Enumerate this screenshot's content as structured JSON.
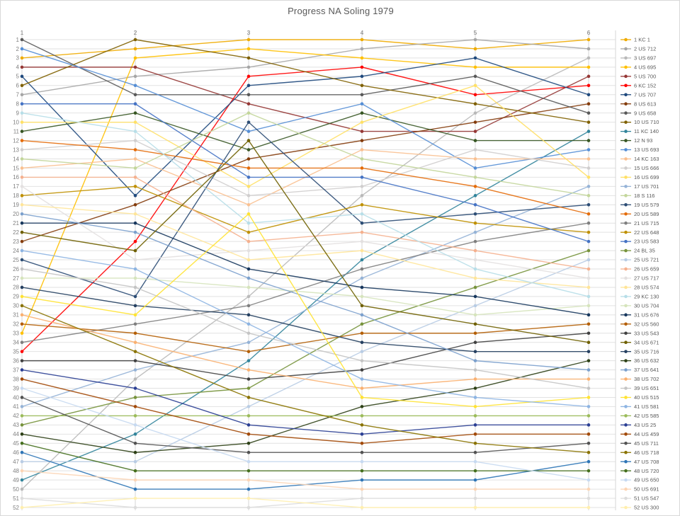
{
  "chart_data": {
    "type": "line",
    "subtype": "bump-chart",
    "title": "Progress NA Soling 1979",
    "xlabel": "",
    "ylabel": "",
    "x_axis": {
      "position": "top",
      "ticks": [
        "1",
        "2",
        "3",
        "4",
        "5",
        "6"
      ]
    },
    "y_axis": {
      "min": 1,
      "max": 52,
      "tick_step": 1,
      "inverted": true
    },
    "grid": true,
    "legend_position": "right",
    "style": {
      "grid_color_h": "#e2e2e2",
      "grid_color_v": "#d6d6d6",
      "axis_label_color": "#808080",
      "legend_text_color": "#595959",
      "title_color": "#595959",
      "background": "#ffffff"
    },
    "races": [
      1,
      2,
      3,
      4,
      5,
      6
    ],
    "series": [
      {
        "label": "1 KC 1",
        "color": "#EFAB00",
        "positions": [
          3,
          2,
          1,
          1,
          2,
          1
        ]
      },
      {
        "label": "2 US 712",
        "color": "#A6A6A6",
        "positions": [
          7,
          5,
          4,
          2,
          1,
          2
        ]
      },
      {
        "label": "3 US 697",
        "color": "#B9B9B9",
        "positions": [
          50,
          38,
          29,
          18,
          9,
          3
        ]
      },
      {
        "label": "4 US 695",
        "color": "#FFC000",
        "positions": [
          33,
          3,
          2,
          3,
          4,
          4
        ]
      },
      {
        "label": "5 US 700",
        "color": "#953735",
        "positions": [
          4,
          4,
          8,
          11,
          11,
          5
        ]
      },
      {
        "label": "6 KC 152",
        "color": "#FF0000",
        "positions": [
          35,
          23,
          5,
          4,
          7,
          6
        ]
      },
      {
        "label": "7 US 707",
        "color": "#1F497D",
        "positions": [
          5,
          18,
          6,
          5,
          3,
          7
        ]
      },
      {
        "label": "8 US 613",
        "color": "#843C0C",
        "positions": [
          23,
          19,
          14,
          12,
          10,
          8
        ]
      },
      {
        "label": "9 US 658",
        "color": "#595959",
        "positions": [
          1,
          7,
          7,
          7,
          5,
          9
        ]
      },
      {
        "label": "10 US 710",
        "color": "#7F6000",
        "positions": [
          6,
          1,
          3,
          6,
          8,
          10
        ]
      },
      {
        "label": "11 KC 140",
        "color": "#31849B",
        "positions": [
          49,
          44,
          36,
          25,
          18,
          11
        ]
      },
      {
        "label": "12 N 93",
        "color": "#375623",
        "positions": [
          11,
          9,
          13,
          9,
          12,
          12
        ]
      },
      {
        "label": "13 US 693",
        "color": "#558ED5",
        "positions": [
          2,
          6,
          11,
          8,
          15,
          13
        ]
      },
      {
        "label": "14 KC 163",
        "color": "#FAC090",
        "positions": [
          15,
          14,
          19,
          13,
          14,
          14
        ]
      },
      {
        "label": "15 US 666",
        "color": "#D0CECE",
        "positions": [
          13,
          12,
          18,
          17,
          13,
          15
        ]
      },
      {
        "label": "16 US 699",
        "color": "#FFE066",
        "positions": [
          10,
          10,
          17,
          10,
          6,
          16
        ]
      },
      {
        "label": "17 US 701",
        "color": "#95B3D7",
        "positions": [
          41,
          37,
          34,
          27,
          22,
          17
        ]
      },
      {
        "label": "18 S 116",
        "color": "#C3D69B",
        "positions": [
          14,
          15,
          9,
          14,
          16,
          18
        ]
      },
      {
        "label": "19 US 579",
        "color": "#2C4D75",
        "positions": [
          25,
          29,
          10,
          21,
          20,
          19
        ]
      },
      {
        "label": "20 US 589",
        "color": "#E46C0A",
        "positions": [
          12,
          13,
          15,
          15,
          17,
          20
        ]
      },
      {
        "label": "21 US 715",
        "color": "#7F7F7F",
        "positions": [
          34,
          32,
          30,
          26,
          23,
          21
        ]
      },
      {
        "label": "22 US 648",
        "color": "#BF9000",
        "positions": [
          18,
          17,
          22,
          19,
          21,
          22
        ]
      },
      {
        "label": "23 US 583",
        "color": "#4472C4",
        "positions": [
          8,
          8,
          16,
          16,
          19,
          23
        ]
      },
      {
        "label": "24 BL 35",
        "color": "#77933C",
        "positions": [
          43,
          40,
          39,
          32,
          28,
          24
        ]
      },
      {
        "label": "25 US 721",
        "color": "#B8CCE4",
        "positions": [
          47,
          47,
          41,
          35,
          30,
          25
        ]
      },
      {
        "label": "26 US 659",
        "color": "#F5B08E",
        "positions": [
          16,
          16,
          23,
          22,
          24,
          26
        ]
      },
      {
        "label": "27 US 717",
        "color": "#E3E0E0",
        "positions": [
          17,
          25,
          24,
          23,
          25,
          27
        ]
      },
      {
        "label": "28 US 574",
        "color": "#FFE599",
        "positions": [
          19,
          20,
          25,
          24,
          27,
          28
        ]
      },
      {
        "label": "29 KC 130",
        "color": "#B7DEE8",
        "positions": [
          9,
          11,
          21,
          20,
          26,
          29
        ]
      },
      {
        "label": "30 US 704",
        "color": "#D6E4BC",
        "positions": [
          27,
          27,
          28,
          29,
          31,
          30
        ]
      },
      {
        "label": "31 US 676",
        "color": "#17375D",
        "positions": [
          21,
          21,
          26,
          28,
          29,
          31
        ]
      },
      {
        "label": "32 US 560",
        "color": "#B45F06",
        "positions": [
          32,
          33,
          35,
          33,
          33,
          32
        ]
      },
      {
        "label": "33 US 543",
        "color": "#404040",
        "positions": [
          36,
          36,
          38,
          37,
          34,
          33
        ]
      },
      {
        "label": "34 US 671",
        "color": "#6F6000",
        "positions": [
          22,
          24,
          12,
          30,
          32,
          34
        ]
      },
      {
        "label": "35 US 716",
        "color": "#254061",
        "positions": [
          28,
          30,
          31,
          34,
          35,
          35
        ]
      },
      {
        "label": "36 US 632",
        "color": "#2D4016",
        "positions": [
          44,
          46,
          45,
          41,
          39,
          36
        ]
      },
      {
        "label": "37 US 641",
        "color": "#7BA0CD",
        "positions": [
          20,
          22,
          27,
          31,
          36,
          37
        ]
      },
      {
        "label": "38 US 702",
        "color": "#FAB070",
        "positions": [
          31,
          34,
          37,
          39,
          38,
          38
        ]
      },
      {
        "label": "39 US 651",
        "color": "#C4C4C4",
        "positions": [
          26,
          28,
          33,
          36,
          37,
          39
        ]
      },
      {
        "label": "40 US 515",
        "color": "#FFE333",
        "positions": [
          29,
          31,
          20,
          40,
          41,
          40
        ]
      },
      {
        "label": "41 US 581",
        "color": "#8DB4E2",
        "positions": [
          24,
          26,
          32,
          38,
          40,
          41
        ]
      },
      {
        "label": "42 US 585",
        "color": "#9BBB59",
        "positions": [
          42,
          42,
          42,
          42,
          42,
          42
        ]
      },
      {
        "label": "43 US 25",
        "color": "#2B3F94",
        "positions": [
          37,
          39,
          43,
          44,
          43,
          43
        ]
      },
      {
        "label": "44 US 459",
        "color": "#A24908",
        "positions": [
          38,
          41,
          44,
          45,
          44,
          44
        ]
      },
      {
        "label": "45 US 711",
        "color": "#525252",
        "positions": [
          40,
          45,
          46,
          46,
          46,
          45
        ]
      },
      {
        "label": "46 US 718",
        "color": "#8A7300",
        "positions": [
          30,
          35,
          40,
          43,
          45,
          46
        ]
      },
      {
        "label": "47 US 708",
        "color": "#2E75B6",
        "positions": [
          46,
          50,
          50,
          49,
          49,
          47
        ]
      },
      {
        "label": "48 US 720",
        "color": "#456F1E",
        "positions": [
          45,
          48,
          48,
          48,
          48,
          48
        ]
      },
      {
        "label": "49 US 650",
        "color": "#C6D9F1",
        "positions": [
          39,
          43,
          47,
          47,
          47,
          49
        ]
      },
      {
        "label": "50 US 691",
        "color": "#FCD5B5",
        "positions": [
          48,
          49,
          49,
          50,
          50,
          50
        ]
      },
      {
        "label": "51 US 547",
        "color": "#DCDCDC",
        "positions": [
          51,
          52,
          52,
          51,
          51,
          51
        ]
      },
      {
        "label": "52 US 300",
        "color": "#FFEFAE",
        "positions": [
          52,
          51,
          51,
          52,
          52,
          52
        ]
      }
    ]
  }
}
